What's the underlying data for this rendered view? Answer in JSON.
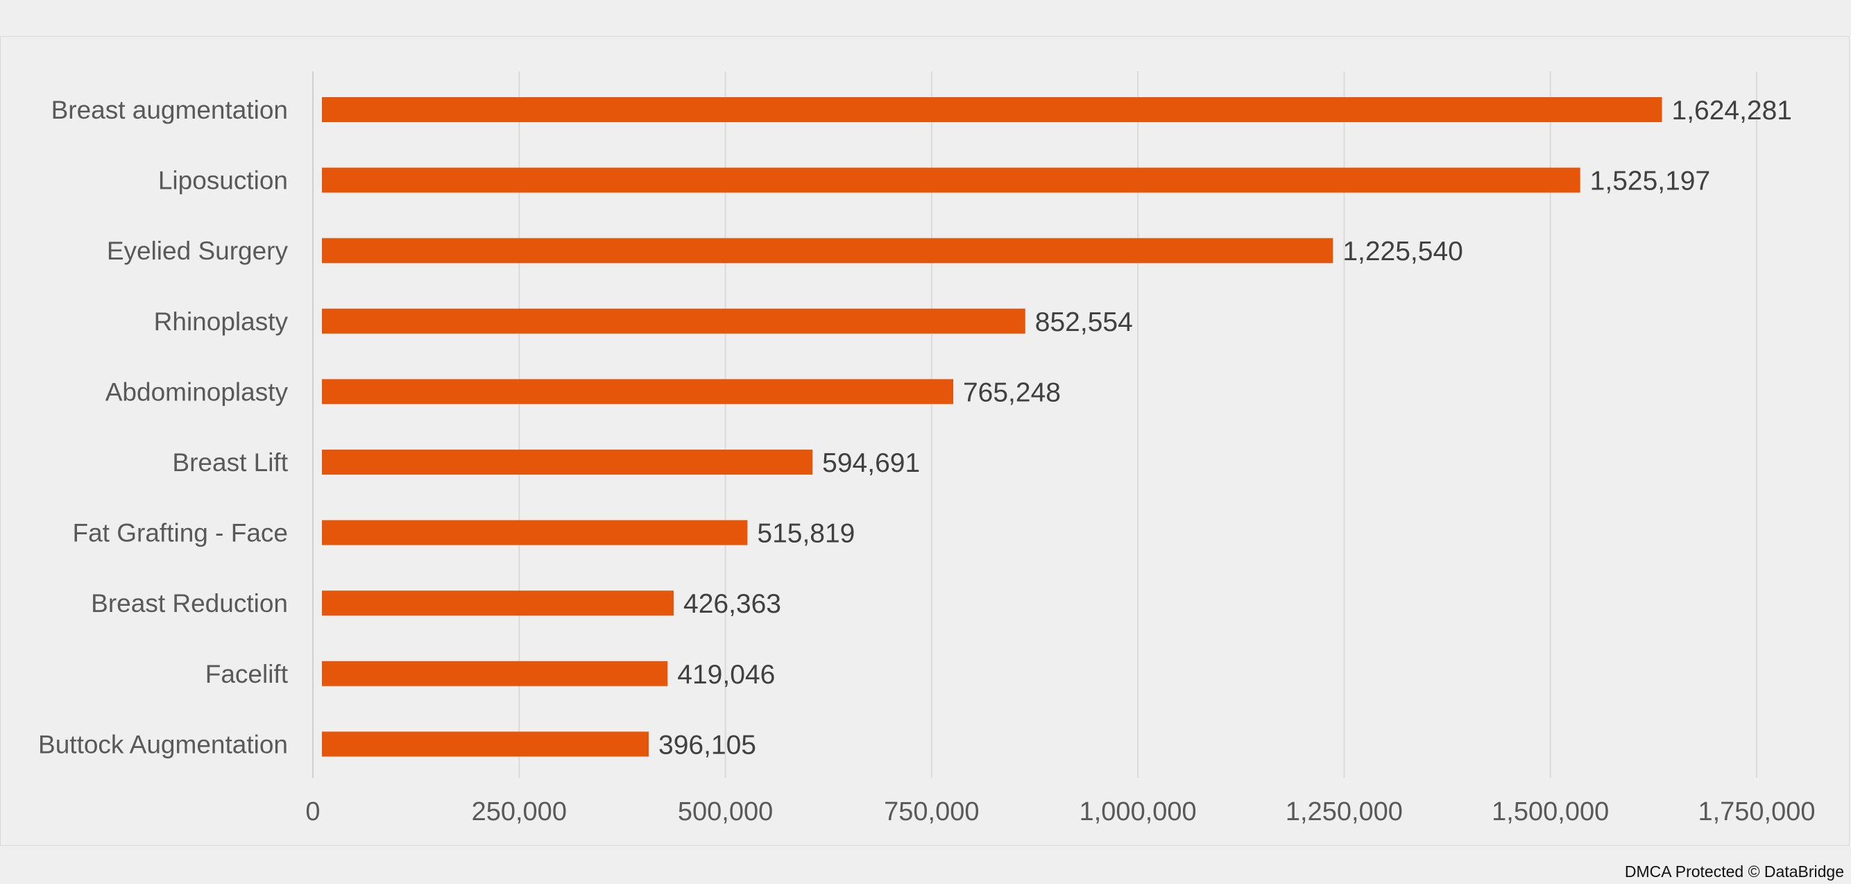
{
  "chart_data": {
    "type": "bar",
    "orientation": "horizontal",
    "categories": [
      "Breast augmentation",
      "Liposuction",
      "Eyelied Surgery",
      "Rhinoplasty",
      "Abdominoplasty",
      "Breast Lift",
      "Fat Grafting - Face",
      "Breast Reduction",
      "Facelift",
      "Buttock Augmentation"
    ],
    "values": [
      1624281,
      1525197,
      1225540,
      852554,
      765248,
      594691,
      515819,
      426363,
      419046,
      396105
    ],
    "value_labels": [
      "1,624,281",
      "1,525,197",
      "1,225,540",
      "852,554",
      "765,248",
      "594,691",
      "515,819",
      "426,363",
      "419,046",
      "396,105"
    ],
    "xlim": [
      0,
      1750000
    ],
    "xticks": [
      0,
      250000,
      500000,
      750000,
      1000000,
      1250000,
      1500000,
      1750000
    ],
    "xtick_labels": [
      "0",
      "250,000",
      "500,000",
      "750,000",
      "1,000,000",
      "1,250,000",
      "1,500,000",
      "1,750,000"
    ],
    "grid": "vertical",
    "legend": "none",
    "bar_color": "#e5560b"
  },
  "watermark": "DMCA Protected © DataBridge"
}
